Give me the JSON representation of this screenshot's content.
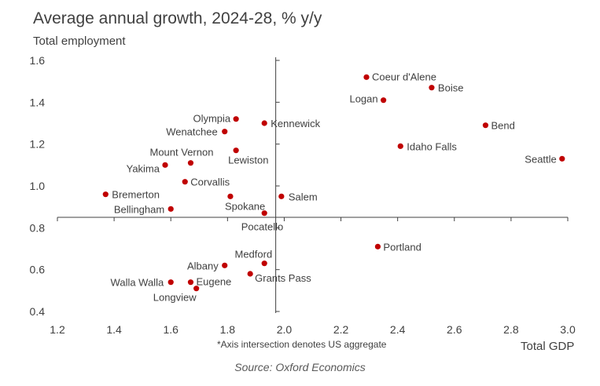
{
  "title": "Average annual growth, 2024-28, % y/y",
  "ylabel": "Total employment",
  "xlabel": "Total GDP",
  "note": "*Axis intersection denotes US aggregate",
  "source": "Source: Oxford Economics",
  "colors": {
    "marker": "#c00000",
    "axis": "#404040",
    "text": "#404040"
  },
  "chart_data": {
    "type": "scatter",
    "title": "Average annual growth, 2024-28, % y/y",
    "xlabel": "Total GDP",
    "ylabel": "Total employment",
    "xlim": [
      1.2,
      3.0
    ],
    "ylim": [
      0.4,
      1.6
    ],
    "x_ticks": [
      "1.2",
      "1.4",
      "1.6",
      "1.8",
      "2.0",
      "2.2",
      "2.4",
      "2.6",
      "2.8",
      "3.0"
    ],
    "y_ticks": [
      "0.4",
      "0.6",
      "0.8",
      "1.0",
      "1.2",
      "1.4",
      "1.6"
    ],
    "us_aggregate": {
      "x": 1.97,
      "y": 0.85
    },
    "grid": false,
    "points": [
      {
        "label": "Coeur d'Alene",
        "x": 2.29,
        "y": 1.52
      },
      {
        "label": "Boise",
        "x": 2.52,
        "y": 1.47
      },
      {
        "label": "Logan",
        "x": 2.35,
        "y": 1.41
      },
      {
        "label": "Bend",
        "x": 2.71,
        "y": 1.29
      },
      {
        "label": "Idaho Falls",
        "x": 2.41,
        "y": 1.19
      },
      {
        "label": "Seattle",
        "x": 2.98,
        "y": 1.13
      },
      {
        "label": "Olympia",
        "x": 1.83,
        "y": 1.32
      },
      {
        "label": "Kennewick",
        "x": 1.93,
        "y": 1.3
      },
      {
        "label": "Wenatchee",
        "x": 1.79,
        "y": 1.26
      },
      {
        "label": "Lewiston",
        "x": 1.83,
        "y": 1.17
      },
      {
        "label": "Mount Vernon",
        "x": 1.67,
        "y": 1.11
      },
      {
        "label": "Yakima",
        "x": 1.58,
        "y": 1.1
      },
      {
        "label": "Corvallis",
        "x": 1.65,
        "y": 1.02
      },
      {
        "label": "Bremerton",
        "x": 1.37,
        "y": 0.96
      },
      {
        "label": "Spokane",
        "x": 1.81,
        "y": 0.95
      },
      {
        "label": "Salem",
        "x": 1.99,
        "y": 0.95
      },
      {
        "label": "Bellingham",
        "x": 1.6,
        "y": 0.89
      },
      {
        "label": "Pocatello",
        "x": 1.93,
        "y": 0.87
      },
      {
        "label": "Portland",
        "x": 2.33,
        "y": 0.71
      },
      {
        "label": "Medford",
        "x": 1.93,
        "y": 0.63
      },
      {
        "label": "Albany",
        "x": 1.79,
        "y": 0.62
      },
      {
        "label": "Grants Pass",
        "x": 1.88,
        "y": 0.58
      },
      {
        "label": "Walla Walla",
        "x": 1.6,
        "y": 0.54
      },
      {
        "label": "Eugene",
        "x": 1.67,
        "y": 0.54
      },
      {
        "label": "Longview",
        "x": 1.69,
        "y": 0.51
      }
    ]
  }
}
